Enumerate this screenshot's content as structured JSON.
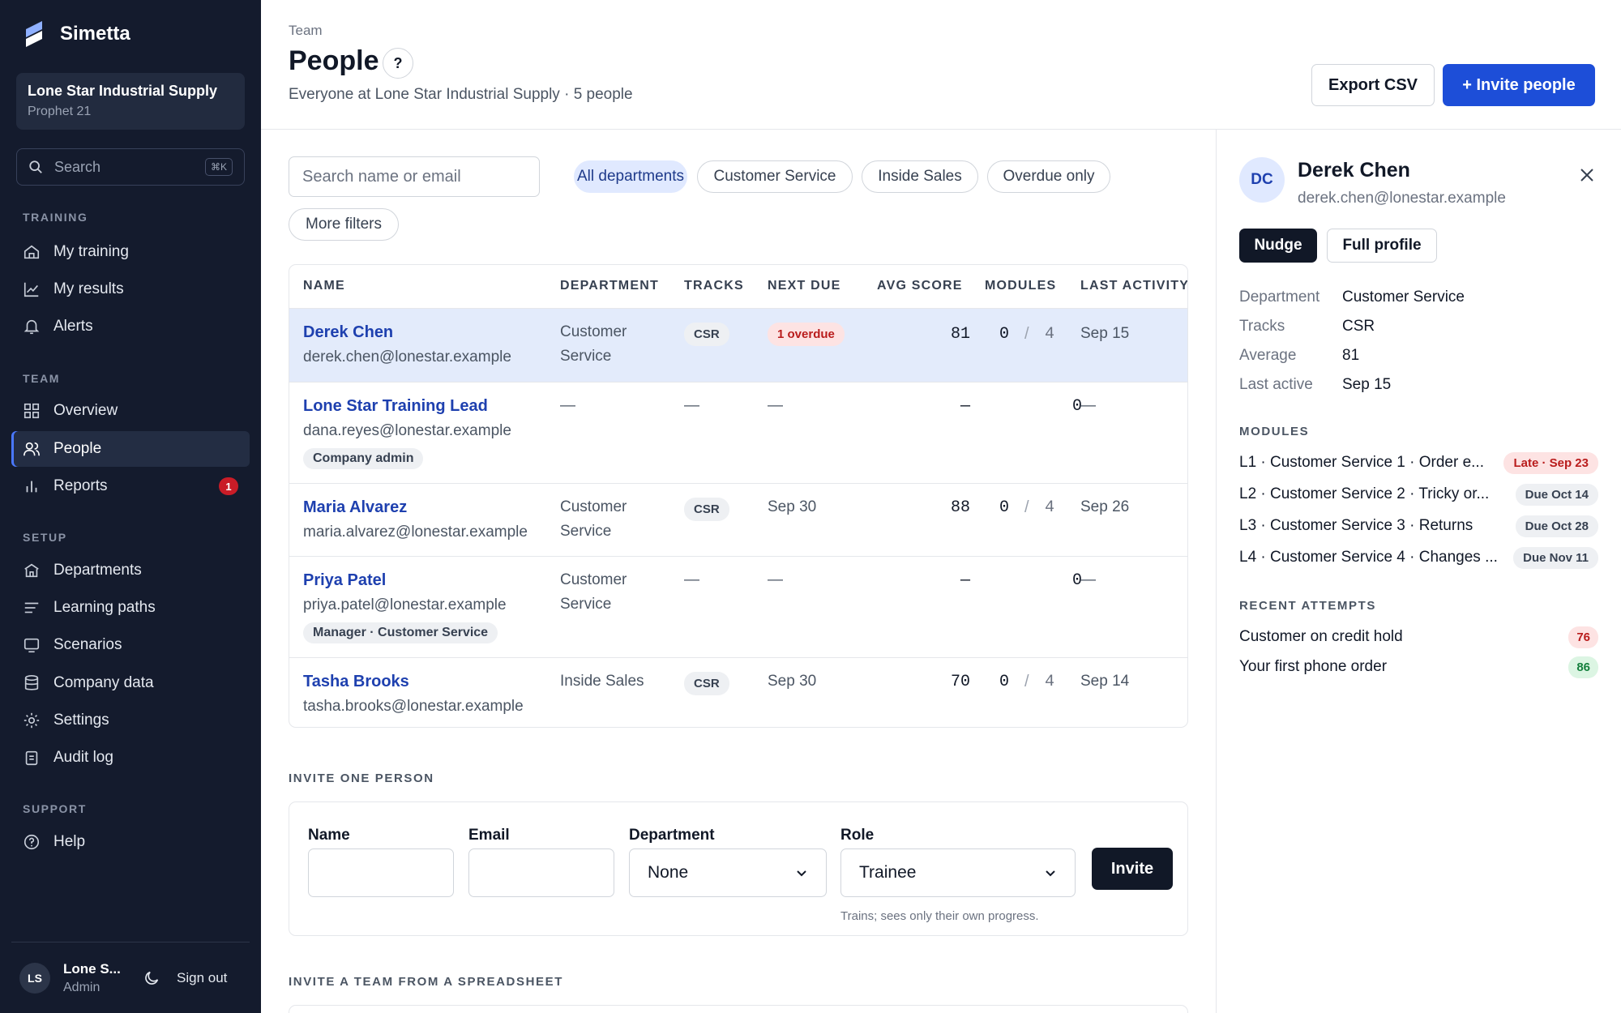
{
  "app": {
    "name": "Simetta"
  },
  "org": {
    "name": "Lone Star Industrial Supply",
    "system": "Prophet 21"
  },
  "sidebar": {
    "search_label": "Search",
    "search_shortcut": "⌘K",
    "sections": [
      {
        "label": "TRAINING",
        "items": [
          {
            "label": "My training",
            "icon": "home-icon"
          },
          {
            "label": "My results",
            "icon": "chart-line-icon"
          },
          {
            "label": "Alerts",
            "icon": "bell-icon"
          }
        ]
      },
      {
        "label": "TEAM",
        "items": [
          {
            "label": "Overview",
            "icon": "grid-icon"
          },
          {
            "label": "People",
            "icon": "users-icon",
            "active": true
          },
          {
            "label": "Reports",
            "icon": "bar-chart-icon",
            "badge": "1"
          }
        ]
      },
      {
        "label": "SETUP",
        "items": [
          {
            "label": "Departments",
            "icon": "building-icon"
          },
          {
            "label": "Learning paths",
            "icon": "list-icon"
          },
          {
            "label": "Scenarios",
            "icon": "monitor-icon"
          },
          {
            "label": "Company data",
            "icon": "database-icon"
          },
          {
            "label": "Settings",
            "icon": "gear-icon"
          },
          {
            "label": "Audit log",
            "icon": "clipboard-icon"
          }
        ]
      },
      {
        "label": "SUPPORT",
        "items": [
          {
            "label": "Help",
            "icon": "help-icon"
          }
        ]
      }
    ],
    "user": {
      "initials": "LS",
      "name": "Lone S...",
      "role": "Admin"
    },
    "sign_out": "Sign out"
  },
  "header": {
    "breadcrumb": "Team",
    "title": "People",
    "help": "?",
    "subtitle": "Everyone at Lone Star Industrial Supply · 5 people",
    "export_label": "Export CSV",
    "invite_label": "+ Invite people"
  },
  "filters": {
    "search_placeholder": "Search name or email",
    "chips": [
      "All departments",
      "Customer Service",
      "Inside Sales",
      "Overdue only",
      "More filters"
    ],
    "active": "All departments"
  },
  "table": {
    "columns": [
      "NAME",
      "DEPARTMENT",
      "TRACKS",
      "NEXT DUE",
      "AVG SCORE",
      "MODULES",
      "LAST ACTIVITY"
    ],
    "rows": [
      {
        "name": "Derek Chen",
        "email": "derek.chen@lonestar.example",
        "role": "",
        "department": "Customer Service",
        "track": "CSR",
        "next_due": "1 overdue",
        "avg": "81",
        "mod_done": "0",
        "mod_sep": "/",
        "mod_total": "4",
        "last": "Sep 15"
      },
      {
        "name": "Lone Star Training Lead",
        "email": "dana.reyes@lonestar.example",
        "role": "Company admin",
        "department": "—",
        "track": "—",
        "next_due": "—",
        "avg": "—",
        "mod_done": "0",
        "mod_sep": "",
        "mod_total": "",
        "last": "—"
      },
      {
        "name": "Maria Alvarez",
        "email": "maria.alvarez@lonestar.example",
        "role": "",
        "department": "Customer Service",
        "track": "CSR",
        "next_due": "Sep 30",
        "avg": "88",
        "mod_done": "0",
        "mod_sep": "/",
        "mod_total": "4",
        "last": "Sep 26"
      },
      {
        "name": "Priya Patel",
        "email": "priya.patel@lonestar.example",
        "role": "Manager · Customer Service",
        "department": "Customer Service",
        "track": "—",
        "next_due": "—",
        "avg": "—",
        "mod_done": "0",
        "mod_sep": "",
        "mod_total": "",
        "last": "—"
      },
      {
        "name": "Tasha Brooks",
        "email": "tasha.brooks@lonestar.example",
        "role": "",
        "department": "Inside Sales",
        "track": "CSR",
        "next_due": "Sep 30",
        "avg": "70",
        "mod_done": "0",
        "mod_sep": "/",
        "mod_total": "4",
        "last": "Sep 14"
      }
    ]
  },
  "invite": {
    "section_label": "INVITE ONE PERSON",
    "name_label": "Name",
    "email_label": "Email",
    "department_label": "Department",
    "department_value": "None",
    "role_label": "Role",
    "role_value": "Trainee",
    "role_hint": "Trains; sees only their own progress.",
    "button": "Invite",
    "sheet_label": "INVITE A TEAM FROM A SPREADSHEET"
  },
  "detail": {
    "initials": "DC",
    "name": "Derek Chen",
    "email": "derek.chen@lonestar.example",
    "nudge": "Nudge",
    "full_profile": "Full profile",
    "fields": [
      {
        "k": "Department",
        "v": "Customer Service"
      },
      {
        "k": "Tracks",
        "v": "CSR"
      },
      {
        "k": "Average",
        "v": "81"
      },
      {
        "k": "Last active",
        "v": "Sep 15"
      }
    ],
    "modules_label": "MODULES",
    "modules": [
      {
        "label": "L1 · Customer Service 1 · Order e...",
        "badge": "Late · Sep 23",
        "kind": "late"
      },
      {
        "label": "L2 · Customer Service 2 · Tricky or...",
        "badge": "Due Oct 14",
        "kind": "due"
      },
      {
        "label": "L3 · Customer Service 3 · Returns",
        "badge": "Due Oct 28",
        "kind": "due"
      },
      {
        "label": "L4 · Customer Service 4 · Changes ...",
        "badge": "Due Nov 11",
        "kind": "due"
      }
    ],
    "attempts_label": "RECENT ATTEMPTS",
    "attempts": [
      {
        "label": "Customer on credit hold",
        "score": "76",
        "kind": "red"
      },
      {
        "label": "Your first phone order",
        "score": "86",
        "kind": "green"
      }
    ]
  }
}
